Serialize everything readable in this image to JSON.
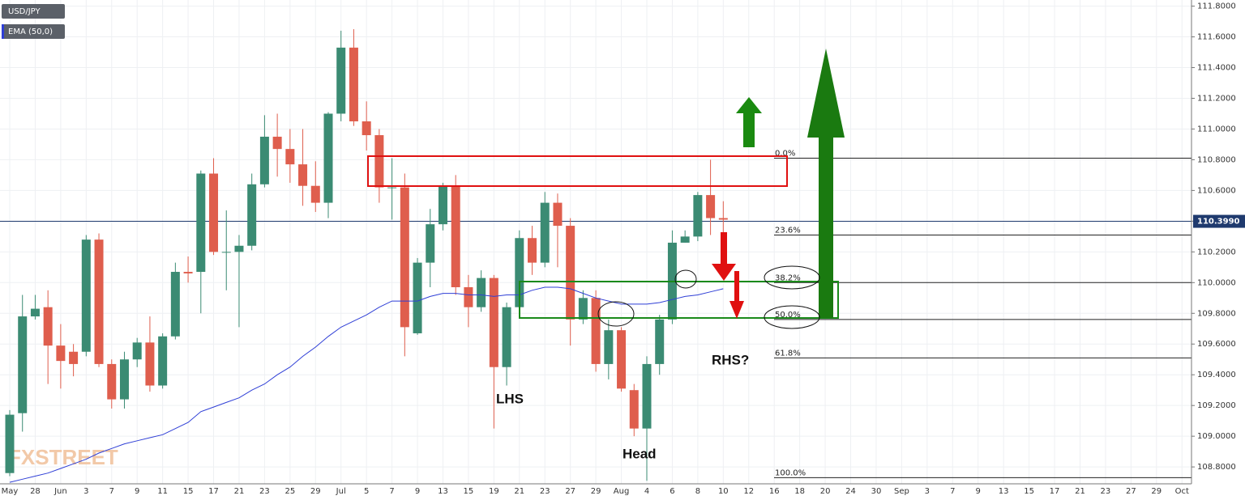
{
  "chart_data": {
    "type": "candlestick",
    "symbol": "USD/JPY",
    "up_color": "#3b8b73",
    "down_color": "#df5e4d",
    "ylim": [
      108.69,
      111.84
    ],
    "yticks": [
      {
        "value": 108.8,
        "label": "108.8000"
      },
      {
        "value": 109.0,
        "label": "109.0000"
      },
      {
        "value": 109.2,
        "label": "109.2000"
      },
      {
        "value": 109.4,
        "label": "109.4000"
      },
      {
        "value": 109.6,
        "label": "109.6000"
      },
      {
        "value": 109.8,
        "label": "109.8000"
      },
      {
        "value": 110.0,
        "label": "110.0000"
      },
      {
        "value": 110.2,
        "label": "110.2000"
      },
      {
        "value": 110.4,
        "label": "110.4000"
      },
      {
        "value": 110.6,
        "label": "110.6000"
      },
      {
        "value": 110.8,
        "label": "110.8000"
      },
      {
        "value": 111.0,
        "label": "111.0000"
      },
      {
        "value": 111.2,
        "label": "111.2000"
      },
      {
        "value": 111.4,
        "label": "111.4000"
      },
      {
        "value": 111.6,
        "label": "111.6000"
      },
      {
        "value": 111.8,
        "label": "111.8000"
      }
    ],
    "xtick_labels": [
      "May",
      "28",
      "Jun",
      "3",
      "7",
      "9",
      "11",
      "15",
      "17",
      "21",
      "23",
      "25",
      "29",
      "Jul",
      "5",
      "7",
      "9",
      "13",
      "15",
      "19",
      "21",
      "23",
      "27",
      "29",
      "Aug",
      "4",
      "6",
      "8",
      "10",
      "12",
      "16",
      "18",
      "20",
      "24",
      "30",
      "Sep",
      "3",
      "7",
      "9",
      "13",
      "15",
      "17",
      "21",
      "23",
      "27",
      "29",
      "Oct"
    ],
    "grid": true,
    "candles": {
      "open": [
        108.76,
        109.15,
        109.78,
        109.84,
        109.59,
        109.55,
        109.55,
        110.28,
        109.47,
        109.24,
        109.5,
        109.61,
        109.33,
        109.65,
        110.07,
        110.07,
        110.71,
        110.2,
        110.2,
        110.24,
        110.64,
        110.95,
        110.87,
        110.77,
        110.63,
        110.52,
        111.1,
        111.53,
        111.05,
        110.96,
        110.62,
        110.62,
        109.67,
        110.13,
        110.38,
        110.63,
        109.97,
        109.84,
        110.03,
        109.45,
        109.84,
        110.29,
        110.13,
        110.52,
        110.37,
        109.76,
        109.9,
        109.47,
        109.69,
        109.3,
        109.05,
        109.47,
        109.76,
        110.26,
        110.3,
        110.57,
        110.42
      ],
      "high": [
        109.17,
        109.92,
        109.92,
        109.95,
        109.73,
        109.6,
        110.31,
        110.32,
        109.5,
        109.55,
        109.64,
        109.78,
        109.67,
        110.13,
        110.17,
        110.73,
        110.81,
        110.47,
        110.31,
        110.71,
        111.09,
        111.1,
        111.0,
        111.0,
        110.79,
        111.11,
        111.64,
        111.65,
        111.18,
        111.0,
        110.81,
        110.71,
        110.16,
        110.48,
        110.65,
        110.7,
        110.05,
        110.08,
        110.05,
        109.87,
        110.34,
        110.37,
        110.59,
        110.58,
        110.42,
        109.95,
        109.95,
        109.76,
        109.71,
        109.34,
        109.52,
        109.79,
        110.34,
        110.34,
        110.59,
        110.8,
        110.53
      ],
      "low": [
        108.74,
        109.03,
        109.76,
        109.34,
        109.31,
        109.39,
        109.52,
        109.45,
        109.18,
        109.18,
        109.45,
        109.29,
        109.31,
        109.63,
        110.0,
        109.8,
        110.18,
        109.95,
        109.71,
        110.21,
        110.62,
        110.69,
        110.65,
        110.5,
        110.46,
        110.42,
        111.05,
        111.02,
        110.86,
        110.52,
        110.41,
        109.52,
        109.66,
        109.97,
        110.34,
        109.92,
        109.71,
        109.81,
        109.05,
        109.33,
        109.81,
        110.05,
        110.1,
        110.1,
        109.59,
        109.73,
        109.42,
        109.37,
        109.29,
        109.0,
        108.71,
        109.4,
        109.73,
        110.26,
        110.27,
        110.31,
        110.31
      ],
      "close": [
        109.14,
        109.78,
        109.83,
        109.59,
        109.49,
        109.47,
        110.28,
        109.47,
        109.24,
        109.5,
        109.61,
        109.33,
        109.65,
        110.07,
        110.06,
        110.71,
        110.2,
        110.2,
        110.24,
        110.64,
        110.95,
        110.87,
        110.77,
        110.63,
        110.52,
        111.1,
        111.53,
        111.05,
        110.96,
        110.62,
        110.62,
        109.71,
        110.13,
        110.38,
        110.63,
        109.97,
        109.84,
        110.03,
        109.45,
        109.84,
        110.29,
        110.13,
        110.52,
        110.37,
        109.76,
        109.9,
        109.47,
        109.69,
        109.31,
        109.05,
        109.47,
        109.76,
        110.26,
        110.3,
        110.57,
        110.42,
        110.41
      ]
    },
    "series": [
      {
        "name": "EMA (50,0)",
        "color": "#2f3fd6",
        "values": [
          108.7,
          108.72,
          108.74,
          108.76,
          108.79,
          108.82,
          108.85,
          108.89,
          108.92,
          108.95,
          108.97,
          108.99,
          109.01,
          109.05,
          109.09,
          109.16,
          109.19,
          109.22,
          109.25,
          109.3,
          109.34,
          109.4,
          109.45,
          109.52,
          109.58,
          109.65,
          109.71,
          109.75,
          109.79,
          109.84,
          109.88,
          109.88,
          109.88,
          109.91,
          109.93,
          109.93,
          109.92,
          109.92,
          109.91,
          109.92,
          109.92,
          109.95,
          109.97,
          109.97,
          109.96,
          109.93,
          109.9,
          109.88,
          109.86,
          109.86,
          109.86,
          109.87,
          109.89,
          109.91,
          109.92,
          109.94,
          109.96
        ]
      }
    ],
    "last_price": {
      "value": 110.399,
      "label": "110.3990",
      "color": "#1f3a6e"
    },
    "fib_levels": [
      {
        "label": "0.0%",
        "value": 110.81
      },
      {
        "label": "23.6%",
        "value": 110.31
      },
      {
        "label": "38.2%",
        "value": 110.0
      },
      {
        "label": "50.0%",
        "value": 109.76
      },
      {
        "label": "61.8%",
        "value": 109.51
      },
      {
        "label": "100.0%",
        "value": 108.73
      }
    ],
    "annotations": [
      "LHS",
      "Head",
      "RHS?"
    ],
    "watermark": "FXSTREET"
  }
}
